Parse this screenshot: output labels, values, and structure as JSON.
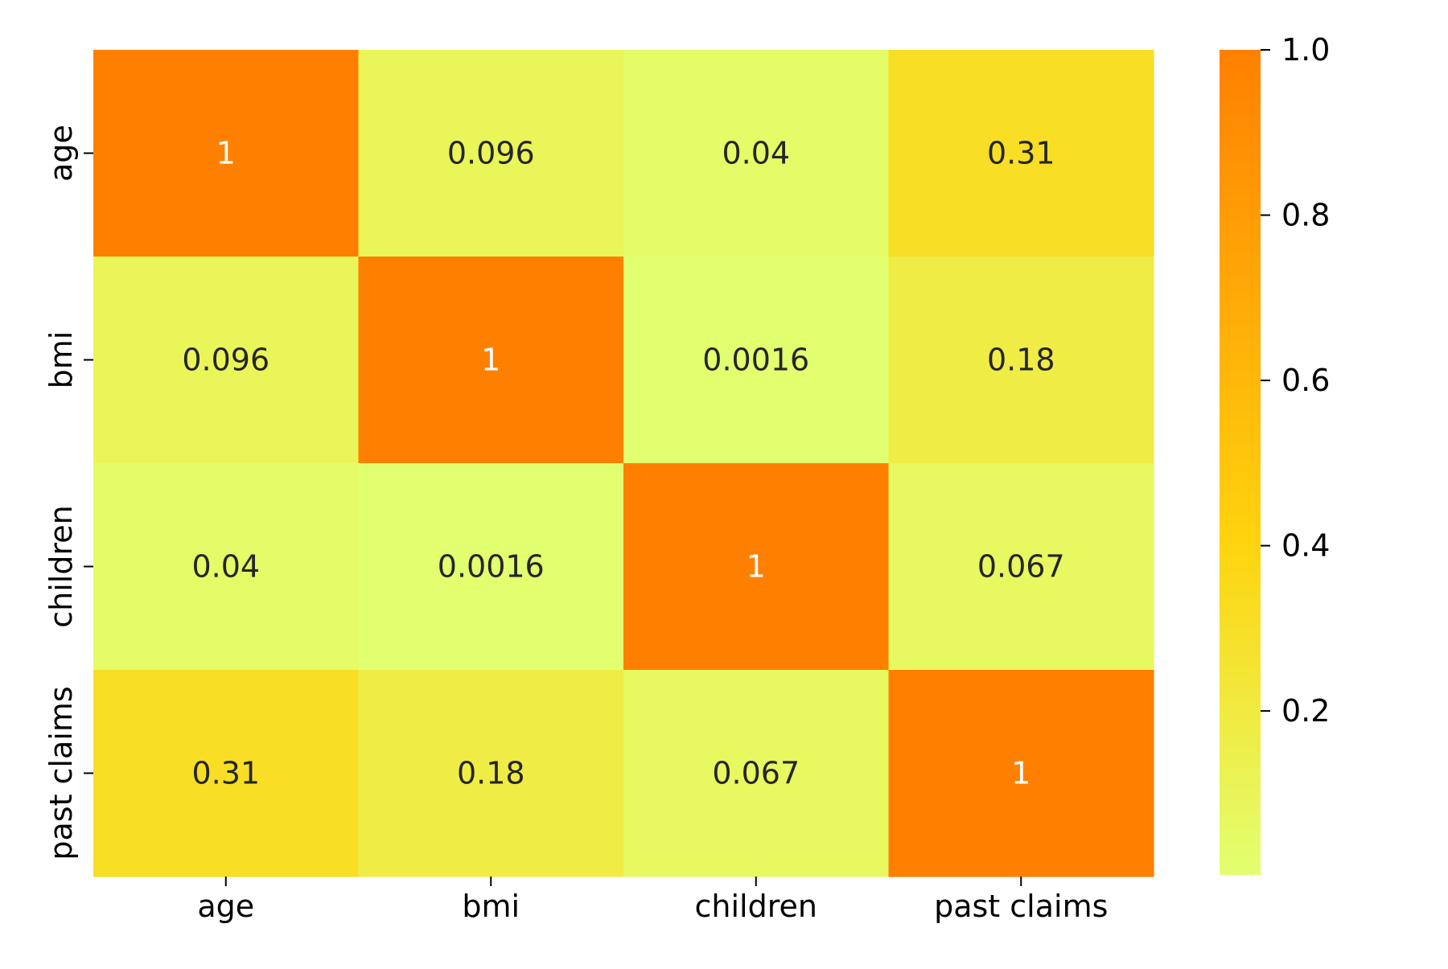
{
  "chart_data": {
    "type": "heatmap",
    "x_categories": [
      "age",
      "bmi",
      "children",
      "past claims"
    ],
    "y_categories": [
      "age",
      "bmi",
      "children",
      "past claims"
    ],
    "values": [
      [
        1,
        0.096,
        0.04,
        0.31
      ],
      [
        0.096,
        1,
        0.0016,
        0.18
      ],
      [
        0.04,
        0.0016,
        1,
        0.067
      ],
      [
        0.31,
        0.18,
        0.067,
        1
      ]
    ],
    "cell_labels": [
      [
        "1",
        "0.096",
        "0.04",
        "0.31"
      ],
      [
        "0.096",
        "1",
        "0.0016",
        "0.18"
      ],
      [
        "0.04",
        "0.0016",
        "1",
        "0.067"
      ],
      [
        "0.31",
        "0.18",
        "0.067",
        "1"
      ]
    ],
    "colorbar": {
      "range": [
        0.0016,
        1.0
      ],
      "ticks": [
        0.2,
        0.4,
        0.6,
        0.8,
        1.0
      ],
      "tick_labels": [
        "0.2",
        "0.4",
        "0.6",
        "0.8",
        "1.0"
      ]
    },
    "colormap": {
      "low": "#e2ff70",
      "mid": "#ffd40f",
      "high": "#ff8000"
    },
    "annotation_colors": {
      "dark_cell_text": "#ffffff",
      "light_cell_text": "#262626"
    },
    "title": "",
    "xlabel": "",
    "ylabel": ""
  }
}
